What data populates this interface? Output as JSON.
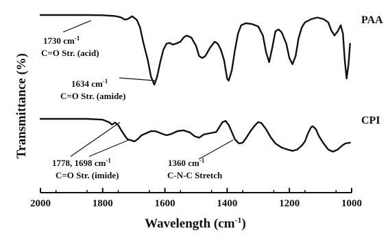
{
  "chart_data": {
    "type": "line",
    "xlabel": "Wavelength (cm",
    "xlabel_sup": "-1",
    "xlabel_close": ")",
    "ylabel": "Transmittance (%)",
    "xlim": [
      2000,
      1000
    ],
    "x_reversed": true,
    "x_ticks": [
      2000,
      1800,
      1600,
      1400,
      1200,
      1000
    ],
    "y_ticks_shown": false,
    "grid": false,
    "legend": "none",
    "series": [
      {
        "name": "PAA",
        "points": [
          [
            2000,
            0.0
          ],
          [
            1900,
            0.0
          ],
          [
            1850,
            0.0
          ],
          [
            1800,
            0.05
          ],
          [
            1760,
            0.25
          ],
          [
            1740,
            0.6
          ],
          [
            1730,
            1.1
          ],
          [
            1720,
            1.0
          ],
          [
            1705,
            0.3
          ],
          [
            1690,
            1.2
          ],
          [
            1680,
            3.0
          ],
          [
            1670,
            6.5
          ],
          [
            1655,
            11.0
          ],
          [
            1645,
            15.0
          ],
          [
            1634,
            17.0
          ],
          [
            1625,
            15.0
          ],
          [
            1615,
            11.5
          ],
          [
            1605,
            8.5
          ],
          [
            1595,
            7.0
          ],
          [
            1585,
            6.8
          ],
          [
            1575,
            7.2
          ],
          [
            1565,
            7.0
          ],
          [
            1550,
            6.5
          ],
          [
            1540,
            5.5
          ],
          [
            1530,
            5.0
          ],
          [
            1515,
            5.5
          ],
          [
            1500,
            7.5
          ],
          [
            1490,
            10.0
          ],
          [
            1480,
            10.5
          ],
          [
            1470,
            10.0
          ],
          [
            1455,
            8.0
          ],
          [
            1440,
            6.5
          ],
          [
            1430,
            7.0
          ],
          [
            1420,
            8.5
          ],
          [
            1410,
            11.0
          ],
          [
            1400,
            15.5
          ],
          [
            1395,
            16.0
          ],
          [
            1385,
            13.5
          ],
          [
            1375,
            8.5
          ],
          [
            1365,
            4.5
          ],
          [
            1355,
            2.5
          ],
          [
            1340,
            2.0
          ],
          [
            1320,
            2.2
          ],
          [
            1300,
            2.8
          ],
          [
            1285,
            5.0
          ],
          [
            1275,
            9.0
          ],
          [
            1265,
            11.5
          ],
          [
            1255,
            8.0
          ],
          [
            1245,
            4.0
          ],
          [
            1235,
            3.5
          ],
          [
            1225,
            4.2
          ],
          [
            1210,
            7.0
          ],
          [
            1200,
            10.5
          ],
          [
            1190,
            12.0
          ],
          [
            1180,
            10.0
          ],
          [
            1170,
            5.5
          ],
          [
            1160,
            3.0
          ],
          [
            1150,
            1.8
          ],
          [
            1130,
            1.0
          ],
          [
            1110,
            0.6
          ],
          [
            1090,
            1.0
          ],
          [
            1075,
            1.8
          ],
          [
            1065,
            3.8
          ],
          [
            1055,
            5.0
          ],
          [
            1045,
            4.0
          ],
          [
            1035,
            2.5
          ],
          [
            1028,
            4.5
          ],
          [
            1022,
            11.0
          ],
          [
            1016,
            15.5
          ],
          [
            1010,
            12.0
          ],
          [
            1005,
            7.0
          ]
        ]
      },
      {
        "name": "CPI",
        "points": [
          [
            2000,
            0.0
          ],
          [
            1900,
            0.0
          ],
          [
            1850,
            0.0
          ],
          [
            1800,
            0.2
          ],
          [
            1790,
            0.5
          ],
          [
            1778,
            0.9
          ],
          [
            1770,
            1.4
          ],
          [
            1760,
            0.9
          ],
          [
            1750,
            1.5
          ],
          [
            1740,
            2.8
          ],
          [
            1730,
            4.0
          ],
          [
            1720,
            5.0
          ],
          [
            1710,
            5.2
          ],
          [
            1698,
            5.5
          ],
          [
            1688,
            5.0
          ],
          [
            1675,
            4.0
          ],
          [
            1660,
            3.5
          ],
          [
            1645,
            3.0
          ],
          [
            1630,
            3.0
          ],
          [
            1610,
            3.6
          ],
          [
            1595,
            4.0
          ],
          [
            1580,
            3.7
          ],
          [
            1560,
            3.0
          ],
          [
            1540,
            2.8
          ],
          [
            1520,
            3.3
          ],
          [
            1505,
            4.2
          ],
          [
            1490,
            4.6
          ],
          [
            1475,
            3.8
          ],
          [
            1455,
            3.5
          ],
          [
            1435,
            3.2
          ],
          [
            1425,
            2.0
          ],
          [
            1415,
            0.8
          ],
          [
            1405,
            0.5
          ],
          [
            1395,
            1.5
          ],
          [
            1385,
            3.2
          ],
          [
            1375,
            5.0
          ],
          [
            1365,
            5.8
          ],
          [
            1360,
            6.0
          ],
          [
            1350,
            5.8
          ],
          [
            1340,
            4.8
          ],
          [
            1325,
            3.0
          ],
          [
            1310,
            1.5
          ],
          [
            1300,
            0.8
          ],
          [
            1290,
            1.0
          ],
          [
            1275,
            2.5
          ],
          [
            1260,
            4.5
          ],
          [
            1245,
            6.0
          ],
          [
            1225,
            7.0
          ],
          [
            1205,
            7.5
          ],
          [
            1190,
            7.8
          ],
          [
            1175,
            7.5
          ],
          [
            1160,
            6.5
          ],
          [
            1150,
            5.5
          ],
          [
            1140,
            3.5
          ],
          [
            1130,
            2.0
          ],
          [
            1125,
            1.8
          ],
          [
            1115,
            2.5
          ],
          [
            1105,
            4.2
          ],
          [
            1090,
            6.0
          ],
          [
            1075,
            7.5
          ],
          [
            1060,
            8.0
          ],
          [
            1045,
            7.5
          ],
          [
            1030,
            6.5
          ],
          [
            1020,
            6.0
          ],
          [
            1005,
            5.8
          ]
        ]
      }
    ],
    "series_labels": [
      "PAA",
      "CPI"
    ],
    "annotations": [
      {
        "wavenumber": "1730 cm",
        "sup": "-1",
        "text": "C=O Str. (acid)"
      },
      {
        "wavenumber": "1634 cm",
        "sup": "-1",
        "text": "C=O Str. (amide)"
      },
      {
        "wavenumber": "1778, 1698 cm",
        "sup": "-1",
        "text": "C=O Str. (imide)"
      },
      {
        "wavenumber": "1360 cm",
        "sup": "-1",
        "text": "C-N-C Stretch"
      }
    ]
  }
}
